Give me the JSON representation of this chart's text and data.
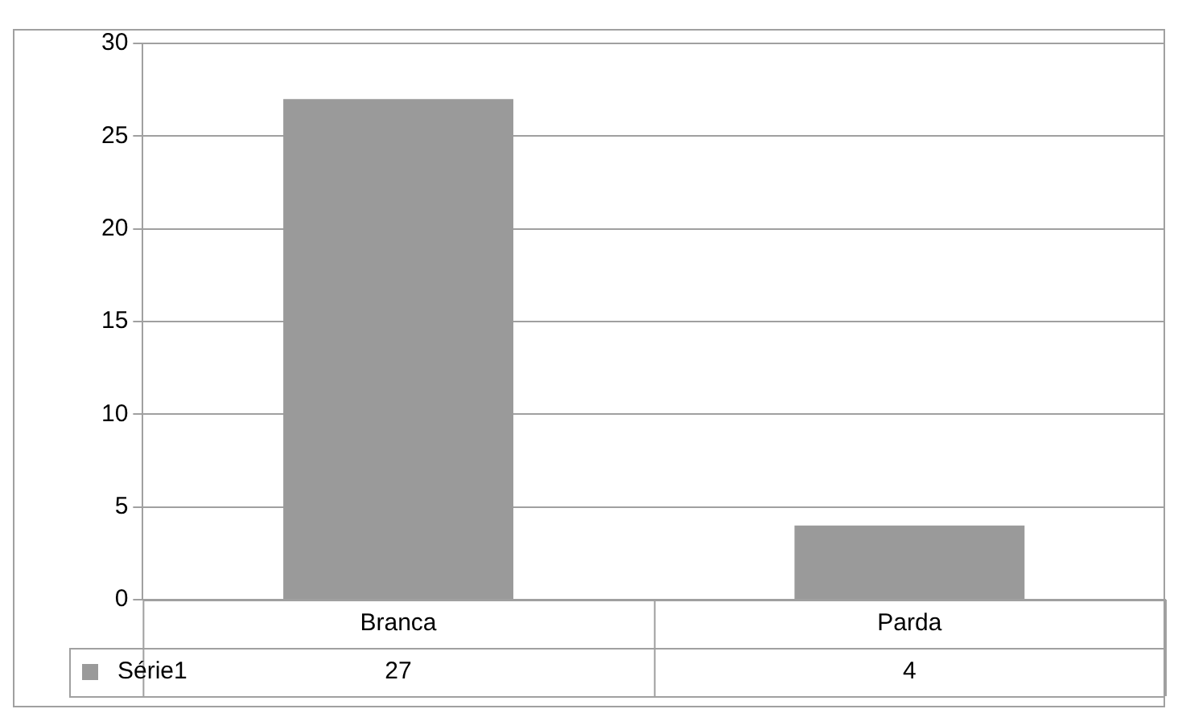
{
  "chart_data": {
    "type": "bar",
    "categories": [
      "Branca",
      "Parda"
    ],
    "series": [
      {
        "name": "Série1",
        "color": "#9a9a9a",
        "values": [
          27,
          4
        ]
      }
    ],
    "ylim": [
      0,
      30
    ],
    "yticks": [
      0,
      5,
      10,
      15,
      20,
      25,
      30
    ],
    "grid": "y",
    "legend": "bottom",
    "data_labels": true
  }
}
